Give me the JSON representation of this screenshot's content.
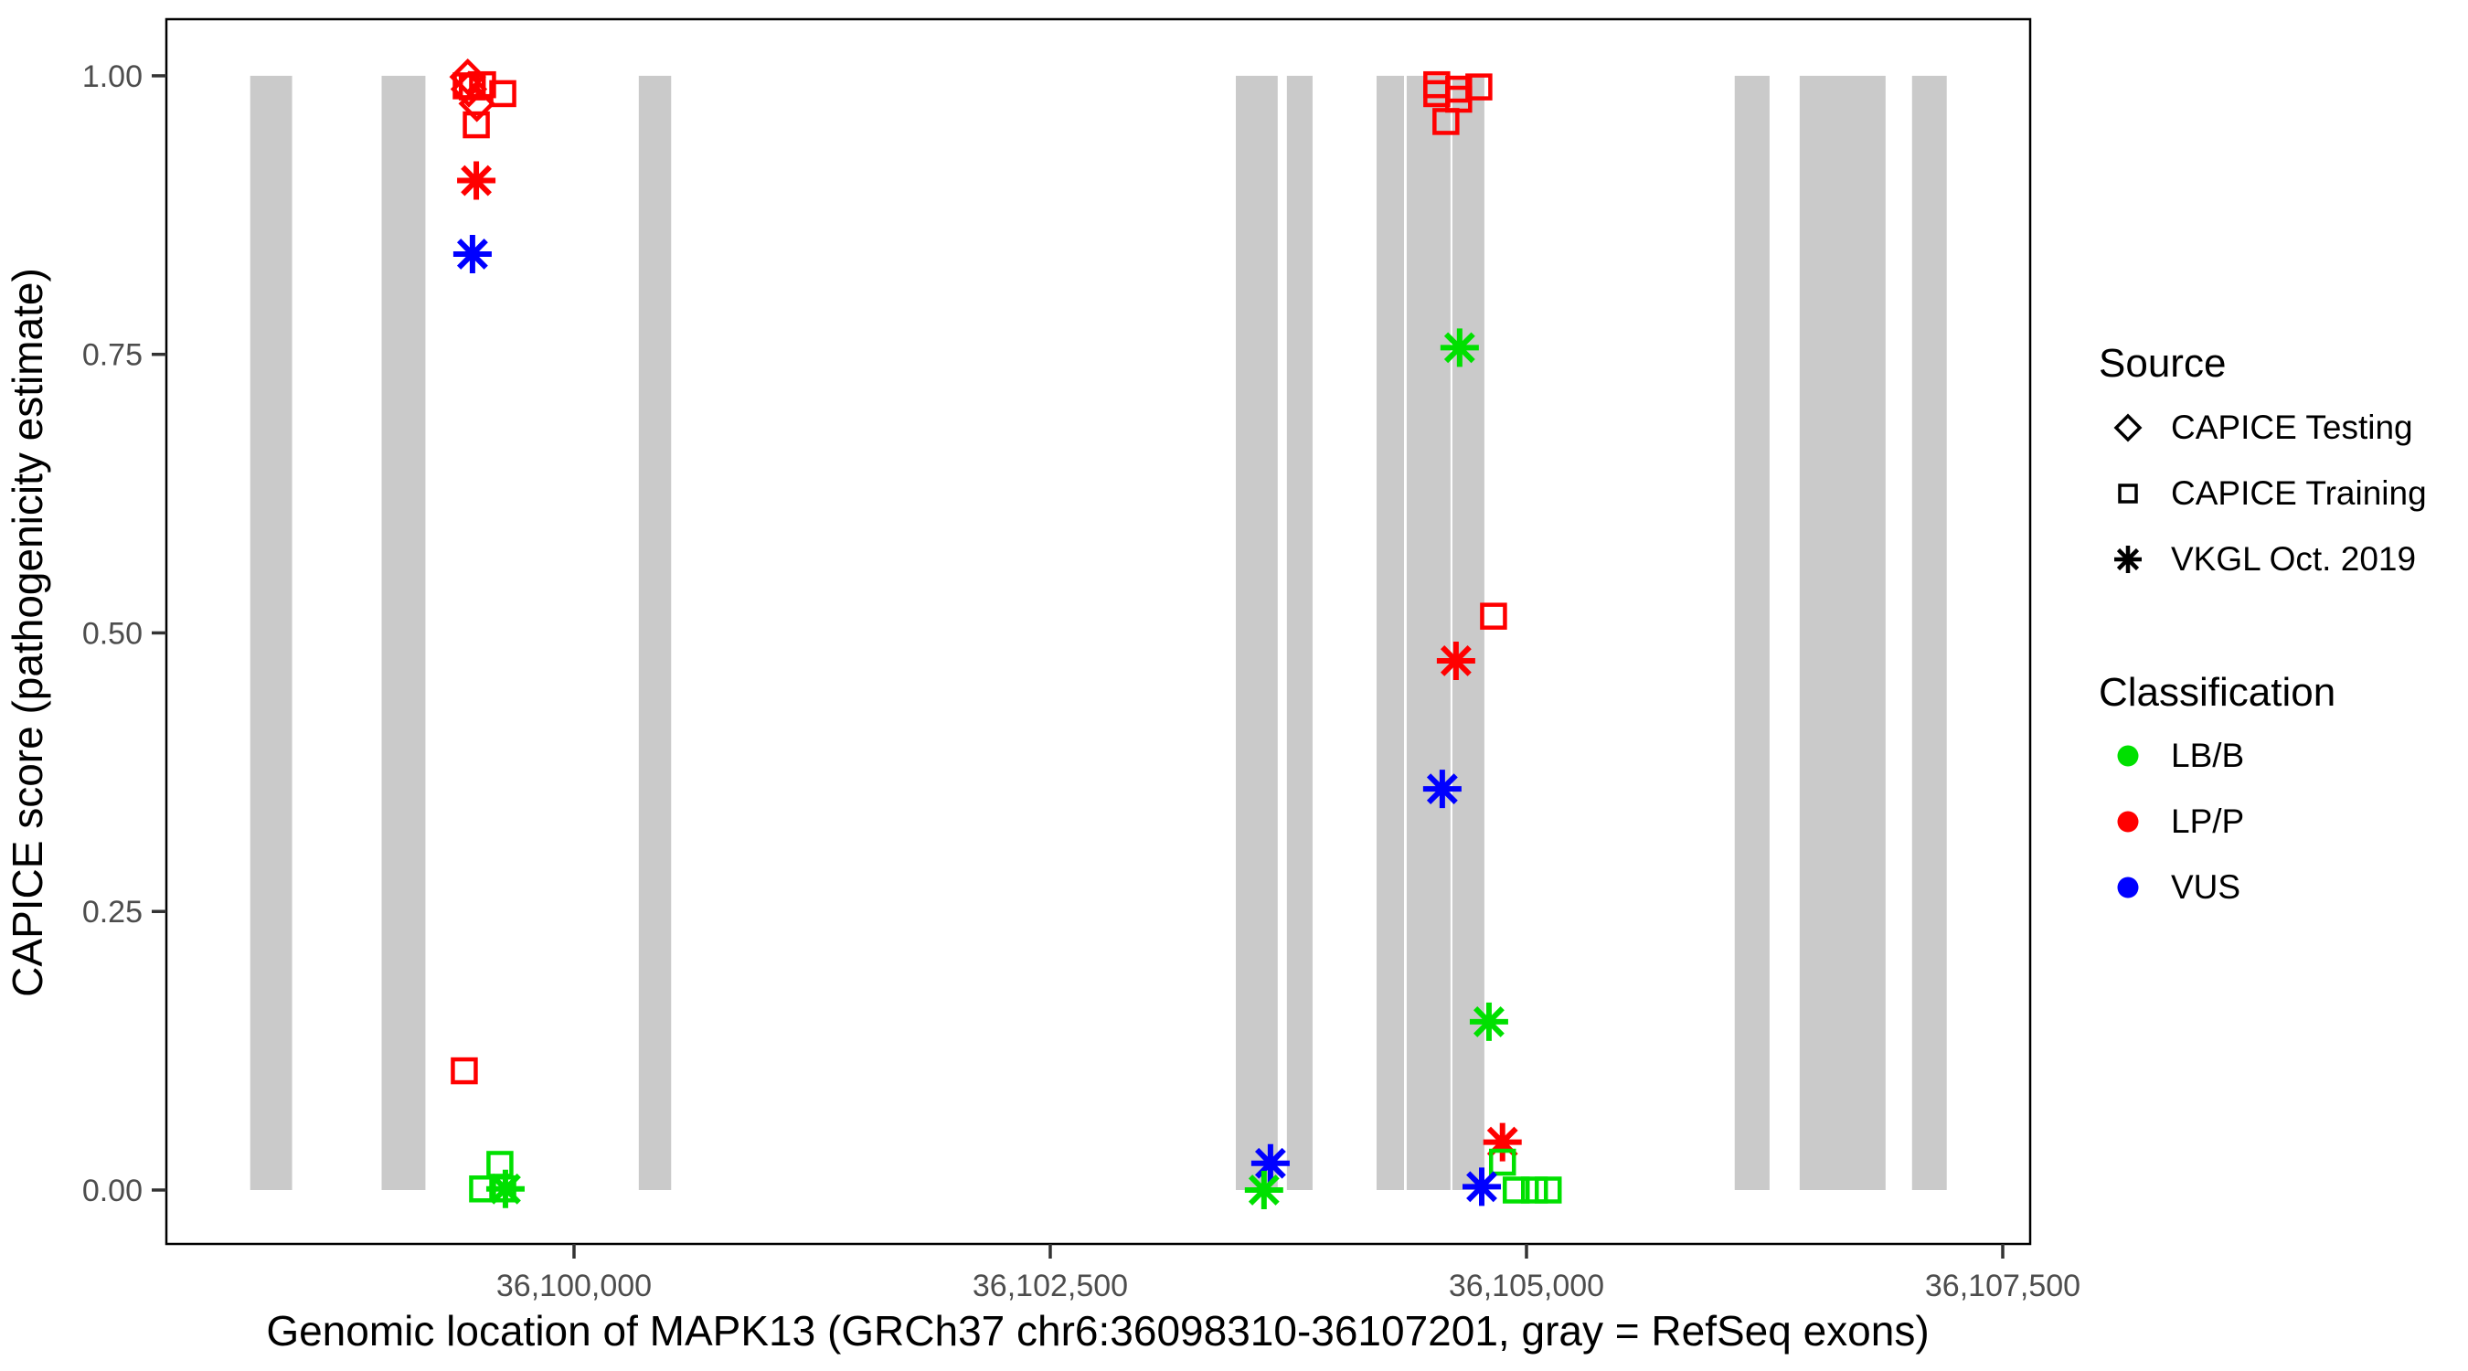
{
  "chart_data": {
    "type": "scatter",
    "title": "",
    "xlabel": "Genomic location of MAPK13 (GRCh37 chr6:36098310-36107201, gray = RefSeq exons)",
    "ylabel": "CAPICE score (pathogenicity estimate)",
    "x_domain": [
      36097860,
      36107644
    ],
    "y_domain": [
      -0.0484,
      1.0508
    ],
    "grid": "off",
    "x_ticks": [
      {
        "value": 36100000,
        "label": "36,100,000"
      },
      {
        "value": 36102500,
        "label": "36,102,500"
      },
      {
        "value": 36105000,
        "label": "36,105,000"
      },
      {
        "value": 36107500,
        "label": "36,107,500"
      }
    ],
    "y_ticks": [
      {
        "value": 0.0,
        "label": "0.00"
      },
      {
        "value": 0.25,
        "label": "0.25"
      },
      {
        "value": 0.5,
        "label": "0.50"
      },
      {
        "value": 0.75,
        "label": "0.75"
      },
      {
        "value": 1.0,
        "label": "1.00"
      }
    ],
    "exons_note": "gray = RefSeq exons, drawn from y=0 to y=1",
    "exons": [
      [
        36098300,
        36098520
      ],
      [
        36098990,
        36099220
      ],
      [
        36100340,
        36100510
      ],
      [
        36103474,
        36103694
      ],
      [
        36103742,
        36103877
      ],
      [
        36104213,
        36104357
      ],
      [
        36104371,
        36104601
      ],
      [
        36104611,
        36104779
      ],
      [
        36106093,
        36106276
      ],
      [
        36106434,
        36106885
      ],
      [
        36107024,
        36107206
      ]
    ],
    "legend": {
      "source_title": "Source",
      "classification_title": "Classification"
    },
    "sources": [
      {
        "name": "CAPICE Testing",
        "marker": "diamond"
      },
      {
        "name": "CAPICE Training",
        "marker": "square"
      },
      {
        "name": "VKGL Oct. 2019",
        "marker": "asterisk"
      }
    ],
    "classifications": [
      {
        "name": "LB/B",
        "color": "#00e000"
      },
      {
        "name": "LP/P",
        "color": "#ff0000"
      },
      {
        "name": "VUS",
        "color": "#0000ff"
      }
    ],
    "points": [
      {
        "x": 36099442,
        "y": 0.999,
        "source": "CAPICE Testing",
        "classification": "LP/P"
      },
      {
        "x": 36099434,
        "y": 0.991,
        "source": "CAPICE Training",
        "classification": "LP/P"
      },
      {
        "x": 36099448,
        "y": 0.988,
        "source": "CAPICE Testing",
        "classification": "LP/P"
      },
      {
        "x": 36099466,
        "y": 0.99,
        "source": "CAPICE Training",
        "classification": "LP/P"
      },
      {
        "x": 36099520,
        "y": 0.992,
        "source": "CAPICE Training",
        "classification": "LP/P"
      },
      {
        "x": 36099626,
        "y": 0.984,
        "source": "CAPICE Training",
        "classification": "LP/P"
      },
      {
        "x": 36099490,
        "y": 0.975,
        "source": "CAPICE Testing",
        "classification": "LP/P"
      },
      {
        "x": 36099487,
        "y": 0.956,
        "source": "CAPICE Training",
        "classification": "LP/P"
      },
      {
        "x": 36099487,
        "y": 0.906,
        "source": "VKGL Oct. 2019",
        "classification": "LP/P"
      },
      {
        "x": 36099467,
        "y": 0.84,
        "source": "VKGL Oct. 2019",
        "classification": "VUS"
      },
      {
        "x": 36099424,
        "y": 0.107,
        "source": "CAPICE Training",
        "classification": "LP/P"
      },
      {
        "x": 36099611,
        "y": 0.023,
        "source": "CAPICE Training",
        "classification": "LB/B"
      },
      {
        "x": 36099520,
        "y": 0.001,
        "source": "CAPICE Training",
        "classification": "LB/B"
      },
      {
        "x": 36099626,
        "y": 0.001,
        "source": "CAPICE Training",
        "classification": "LB/B"
      },
      {
        "x": 36099640,
        "y": 0.001,
        "source": "VKGL Oct. 2019",
        "classification": "LB/B"
      },
      {
        "x": 36103656,
        "y": 0.024,
        "source": "VKGL Oct. 2019",
        "classification": "VUS"
      },
      {
        "x": 36103622,
        "y": 0.0,
        "source": "VKGL Oct. 2019",
        "classification": "LB/B"
      },
      {
        "x": 36104529,
        "y": 0.992,
        "source": "CAPICE Training",
        "classification": "LP/P"
      },
      {
        "x": 36104529,
        "y": 0.984,
        "source": "CAPICE Training",
        "classification": "LP/P"
      },
      {
        "x": 36104644,
        "y": 0.988,
        "source": "CAPICE Training",
        "classification": "LP/P"
      },
      {
        "x": 36104644,
        "y": 0.979,
        "source": "CAPICE Training",
        "classification": "LP/P"
      },
      {
        "x": 36104750,
        "y": 0.99,
        "source": "CAPICE Training",
        "classification": "LP/P"
      },
      {
        "x": 36104577,
        "y": 0.959,
        "source": "CAPICE Training",
        "classification": "LP/P"
      },
      {
        "x": 36104649,
        "y": 0.756,
        "source": "VKGL Oct. 2019",
        "classification": "LB/B"
      },
      {
        "x": 36104827,
        "y": 0.515,
        "source": "CAPICE Training",
        "classification": "LP/P"
      },
      {
        "x": 36104630,
        "y": 0.475,
        "source": "VKGL Oct. 2019",
        "classification": "LP/P"
      },
      {
        "x": 36104558,
        "y": 0.36,
        "source": "VKGL Oct. 2019",
        "classification": "VUS"
      },
      {
        "x": 36104803,
        "y": 0.151,
        "source": "VKGL Oct. 2019",
        "classification": "LB/B"
      },
      {
        "x": 36104874,
        "y": 0.043,
        "source": "VKGL Oct. 2019",
        "classification": "LP/P"
      },
      {
        "x": 36104874,
        "y": 0.025,
        "source": "CAPICE Training",
        "classification": "LB/B"
      },
      {
        "x": 36104765,
        "y": 0.003,
        "source": "VKGL Oct. 2019",
        "classification": "VUS"
      },
      {
        "x": 36104946,
        "y": 0.0,
        "source": "CAPICE Training",
        "classification": "LB/B"
      },
      {
        "x": 36105042,
        "y": 0.0,
        "source": "CAPICE Training",
        "classification": "LB/B"
      },
      {
        "x": 36105114,
        "y": 0.0,
        "source": "CAPICE Training",
        "classification": "LB/B"
      }
    ]
  },
  "colors": {
    "exon_gray": "#cacaca",
    "panel_border": "#000000",
    "tick_mark": "#333333",
    "tick_text": "#4d4d4d",
    "legend_key": "#000000"
  }
}
